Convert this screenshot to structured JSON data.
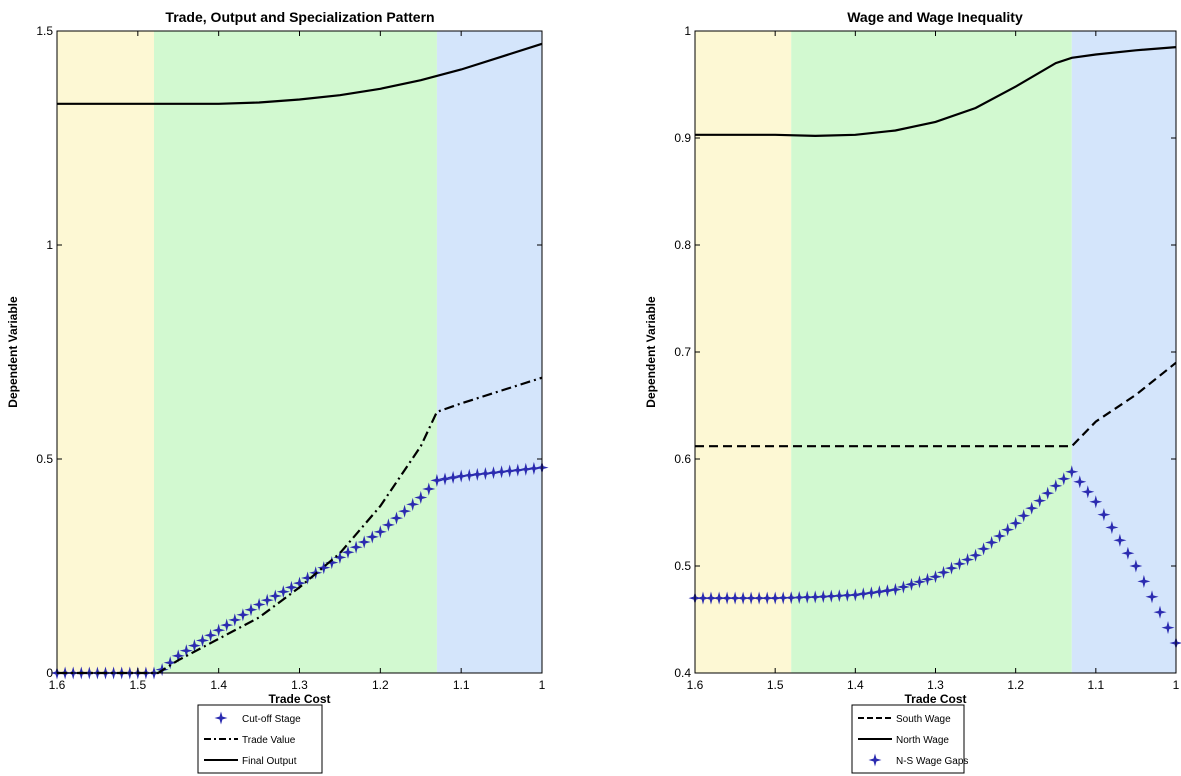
{
  "chart_data": [
    {
      "type": "line",
      "title": "Trade, Output and Specialization Pattern",
      "xlabel": "Trade Cost",
      "ylabel": "Dependent Variable",
      "xlim": [
        1.6,
        1.0
      ],
      "x_reversed": true,
      "ylim": [
        0,
        1.5
      ],
      "xticks": [
        "1.6",
        "1.5",
        "1.4",
        "1.3",
        "1.2",
        "1.1",
        "1"
      ],
      "yticks": [
        "0",
        "0.5",
        "1",
        "1.5"
      ],
      "regions": [
        {
          "from": 1.6,
          "to": 1.48,
          "color": "#fdf8d4"
        },
        {
          "from": 1.48,
          "to": 1.13,
          "color": "#d2f9d0"
        },
        {
          "from": 1.13,
          "to": 1.0,
          "color": "#d4e5fb"
        }
      ],
      "legend_position": "below",
      "series": [
        {
          "name": "Cut-off Stage",
          "style": "star-markers",
          "color": "#2b2bb0",
          "x": [
            1.6,
            1.55,
            1.5,
            1.475,
            1.45,
            1.4,
            1.35,
            1.3,
            1.25,
            1.2,
            1.15,
            1.13,
            1.1,
            1.05,
            1.0
          ],
          "y": [
            0,
            0,
            0,
            0,
            0.04,
            0.1,
            0.16,
            0.21,
            0.27,
            0.33,
            0.41,
            0.45,
            0.46,
            0.47,
            0.48
          ]
        },
        {
          "name": "Trade Value",
          "style": "dash-dot",
          "color": "#000000",
          "x": [
            1.6,
            1.5,
            1.475,
            1.45,
            1.4,
            1.35,
            1.3,
            1.25,
            1.2,
            1.15,
            1.13,
            1.1,
            1.05,
            1.0
          ],
          "y": [
            0,
            0,
            0,
            0.03,
            0.08,
            0.13,
            0.2,
            0.28,
            0.39,
            0.53,
            0.61,
            0.63,
            0.66,
            0.69
          ]
        },
        {
          "name": "Final Output",
          "style": "solid",
          "color": "#000000",
          "x": [
            1.6,
            1.5,
            1.45,
            1.4,
            1.35,
            1.3,
            1.25,
            1.2,
            1.15,
            1.1,
            1.05,
            1.0
          ],
          "y": [
            1.33,
            1.33,
            1.33,
            1.33,
            1.333,
            1.34,
            1.35,
            1.365,
            1.385,
            1.41,
            1.44,
            1.47
          ]
        }
      ]
    },
    {
      "type": "line",
      "title": "Wage and Wage Inequality",
      "xlabel": "Trade Cost",
      "ylabel": "Dependent Variable",
      "xlim": [
        1.6,
        1.0
      ],
      "x_reversed": true,
      "ylim": [
        0.4,
        1.0
      ],
      "xticks": [
        "1.6",
        "1.5",
        "1.4",
        "1.3",
        "1.2",
        "1.1",
        "1"
      ],
      "yticks": [
        "0.4",
        "0.5",
        "0.6",
        "0.7",
        "0.8",
        "0.9",
        "1"
      ],
      "regions": [
        {
          "from": 1.6,
          "to": 1.48,
          "color": "#fdf8d4"
        },
        {
          "from": 1.48,
          "to": 1.13,
          "color": "#d2f9d0"
        },
        {
          "from": 1.13,
          "to": 1.0,
          "color": "#d4e5fb"
        }
      ],
      "legend_position": "below",
      "series": [
        {
          "name": "South Wage",
          "style": "dashed",
          "color": "#000000",
          "x": [
            1.6,
            1.5,
            1.4,
            1.3,
            1.2,
            1.13,
            1.1,
            1.05,
            1.0
          ],
          "y": [
            0.612,
            0.612,
            0.612,
            0.612,
            0.612,
            0.612,
            0.635,
            0.66,
            0.69
          ]
        },
        {
          "name": "North Wage",
          "style": "solid",
          "color": "#000000",
          "x": [
            1.6,
            1.5,
            1.45,
            1.4,
            1.35,
            1.3,
            1.25,
            1.2,
            1.15,
            1.13,
            1.1,
            1.05,
            1.0
          ],
          "y": [
            0.903,
            0.903,
            0.902,
            0.903,
            0.907,
            0.915,
            0.928,
            0.948,
            0.97,
            0.975,
            0.978,
            0.982,
            0.985
          ]
        },
        {
          "name": "N-S Wage Gaps",
          "style": "star-markers",
          "color": "#2b2bb0",
          "x": [
            1.6,
            1.5,
            1.45,
            1.4,
            1.35,
            1.3,
            1.25,
            1.2,
            1.15,
            1.13,
            1.1,
            1.05,
            1.0
          ],
          "y": [
            0.47,
            0.47,
            0.471,
            0.473,
            0.478,
            0.49,
            0.51,
            0.54,
            0.575,
            0.588,
            0.56,
            0.5,
            0.428
          ]
        }
      ]
    }
  ]
}
